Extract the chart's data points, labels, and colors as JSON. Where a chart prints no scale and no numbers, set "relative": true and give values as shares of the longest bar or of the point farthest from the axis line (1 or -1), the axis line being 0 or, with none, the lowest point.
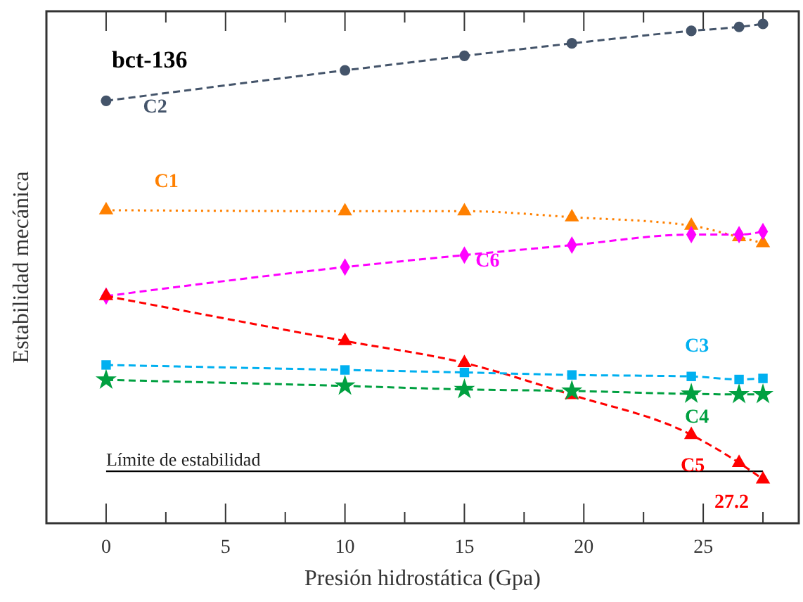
{
  "chart_data": {
    "type": "line",
    "title": "bct-136",
    "xlabel": "Presión hidrostática (Gpa)",
    "ylabel": "Estabilidad mecánica",
    "relative": true,
    "x": [
      0,
      10,
      15,
      19.5,
      24.5,
      26.5,
      27.5
    ],
    "xlim": [
      -2.5,
      29
    ],
    "xticks": [
      0,
      {
        "value": 2.5,
        "label": null
      },
      5,
      {
        "value": 7.5,
        "label": null
      },
      10,
      {
        "value": 12.5,
        "label": null
      },
      15,
      {
        "value": 17.5,
        "label": null
      },
      20,
      {
        "value": 22.5,
        "label": null
      },
      25,
      {
        "value": 27.5,
        "label": null
      }
    ],
    "grid": false,
    "series": [
      {
        "name": "C2",
        "color": "#44546a",
        "marker": "circle",
        "line_style": "dashed",
        "values": [
          0.846,
          0.907,
          0.936,
          0.961,
          0.986,
          0.994,
          1
        ]
      },
      {
        "name": "C1",
        "color": "#ff8000",
        "marker": "triangle",
        "line_style": "dotted",
        "values": [
          0.627,
          0.625,
          0.625,
          0.613,
          0.596,
          0.573,
          0.561
        ]
      },
      {
        "name": "C6",
        "color": "#ff00ff",
        "marker": "diamond",
        "line_style": "dashed",
        "values": [
          0.455,
          0.513,
          0.537,
          0.557,
          0.578,
          0.578,
          0.584
        ]
      },
      {
        "name": "C5",
        "color": "#ff0000",
        "marker": "triangle",
        "line_style": "dashed",
        "values": [
          0.455,
          0.365,
          0.321,
          0.257,
          0.177,
          0.121,
          0.088
        ]
      },
      {
        "name": "C3",
        "color": "#00b0f0",
        "marker": "square",
        "line_style": "dashed",
        "values": [
          0.317,
          0.307,
          0.302,
          0.297,
          0.294,
          0.288,
          0.29
        ]
      },
      {
        "name": "C4",
        "color": "#00a040",
        "marker": "star",
        "line_style": "dashed",
        "values": [
          0.287,
          0.275,
          0.268,
          0.265,
          0.259,
          0.258,
          0.258
        ]
      }
    ],
    "ref_lines": [
      {
        "axis": "y",
        "value": 0.104,
        "label": "Límite de estabilidad",
        "color": "#000000",
        "line_style": "solid"
      }
    ],
    "annotations": [
      {
        "text": "27.2",
        "x": 27.5,
        "y": 0.088
      }
    ]
  }
}
